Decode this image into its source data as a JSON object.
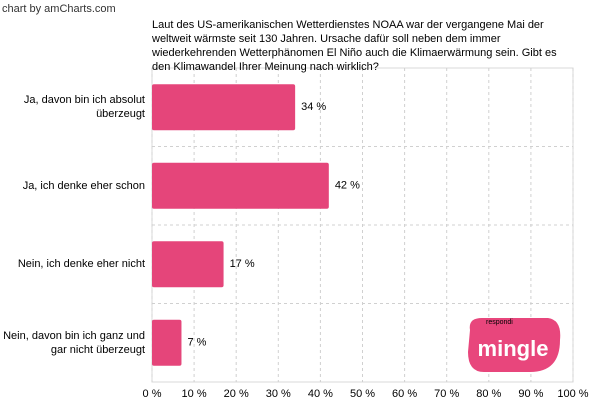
{
  "chart_data": {
    "type": "bar",
    "orientation": "horizontal",
    "credit": "chart by amCharts.com",
    "title": "Laut des US-amerikanischen Wetterdienstes NOAA war der vergangene Mai der weltweit wärmste seit 130 Jahren. Ursache dafür soll neben dem immer wiederkehrenden Wetterphänomen El Niño auch die Klimaerwärmung sein. Gibt es den Klimawandel Ihrer Meinung nach wirklich?",
    "categories": [
      "Ja, davon bin ich absolut überzeugt",
      "Ja, ich denke eher schon",
      "Nein, ich denke eher nicht",
      "Nein, davon bin ich ganz und gar nicht überzeugt"
    ],
    "values": [
      34,
      42,
      17,
      7
    ],
    "value_labels": [
      "34 %",
      "42 %",
      "17 %",
      "7 %"
    ],
    "color": "#e5457a",
    "xlim": [
      0,
      100
    ],
    "xticks": [
      {
        "value": 0,
        "label": "0 %"
      },
      {
        "value": 10,
        "label": "10 %"
      },
      {
        "value": 20,
        "label": "20 %"
      },
      {
        "value": 30,
        "label": "30 %"
      },
      {
        "value": 40,
        "label": "40 %"
      },
      {
        "value": 50,
        "label": "50 %"
      },
      {
        "value": 60,
        "label": "60 %"
      },
      {
        "value": 70,
        "label": "70 %"
      },
      {
        "value": 80,
        "label": "80 %"
      },
      {
        "value": 90,
        "label": "90 %"
      },
      {
        "value": 100,
        "label": "100 %"
      }
    ],
    "grid": true,
    "logo": {
      "small": "respondi",
      "large": "mingle"
    }
  }
}
